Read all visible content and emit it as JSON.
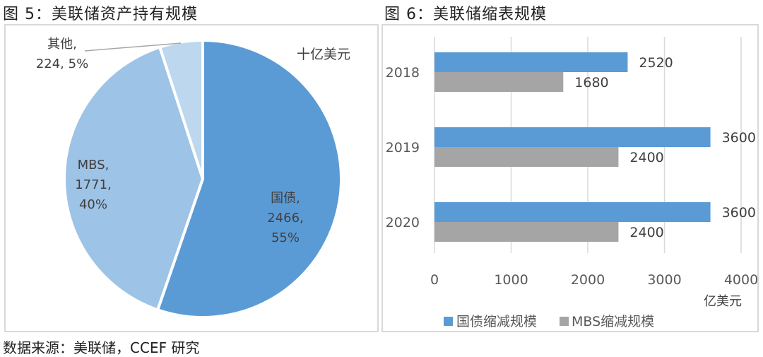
{
  "figure5": {
    "title": "图 5：美联储资产持有规模",
    "unit": "十亿美元",
    "slices": [
      {
        "name": "国债",
        "value": 2466,
        "pct": "55%",
        "color": "#5b9bd5",
        "label_lines": [
          "国债,",
          "2466,",
          "55%"
        ]
      },
      {
        "name": "MBS",
        "value": 1771,
        "pct": "40%",
        "color": "#9dc3e6",
        "label_lines": [
          "MBS,",
          "1771,",
          "40%"
        ]
      },
      {
        "name": "其他",
        "value": 224,
        "pct": "5%",
        "color": "#bdd7ee",
        "label_lines": [
          "其他,",
          "224, 5%"
        ]
      }
    ]
  },
  "figure6": {
    "title": "图 6：美联储缩表规模",
    "unit": "亿美元",
    "legend": [
      {
        "label": "国债缩减规模",
        "color": "#5b9bd5"
      },
      {
        "label": "MBS缩减规模",
        "color": "#a5a5a5"
      }
    ],
    "x_ticks": [
      "0",
      "1000",
      "2000",
      "3000",
      "4000"
    ]
  },
  "source": "数据来源：美联储，CCEF 研究",
  "chart_data": [
    {
      "type": "pie",
      "title": "图 5：美联储资产持有规模",
      "unit": "十亿美元",
      "categories": [
        "国债",
        "MBS",
        "其他"
      ],
      "values": [
        2466,
        1771,
        224
      ],
      "percentages": [
        55,
        40,
        5
      ]
    },
    {
      "type": "bar",
      "orientation": "horizontal",
      "title": "图 6：美联储缩表规模",
      "categories": [
        "2018",
        "2019",
        "2020"
      ],
      "series": [
        {
          "name": "国债缩减规模",
          "values": [
            2520,
            3600,
            3600
          ]
        },
        {
          "name": "MBS缩减规模",
          "values": [
            1680,
            2400,
            2400
          ]
        }
      ],
      "xlabel": "亿美元",
      "xlim": [
        0,
        4000
      ],
      "x_ticks": [
        0,
        1000,
        2000,
        3000,
        4000
      ],
      "grid": "vertical",
      "legend_position": "bottom"
    }
  ]
}
